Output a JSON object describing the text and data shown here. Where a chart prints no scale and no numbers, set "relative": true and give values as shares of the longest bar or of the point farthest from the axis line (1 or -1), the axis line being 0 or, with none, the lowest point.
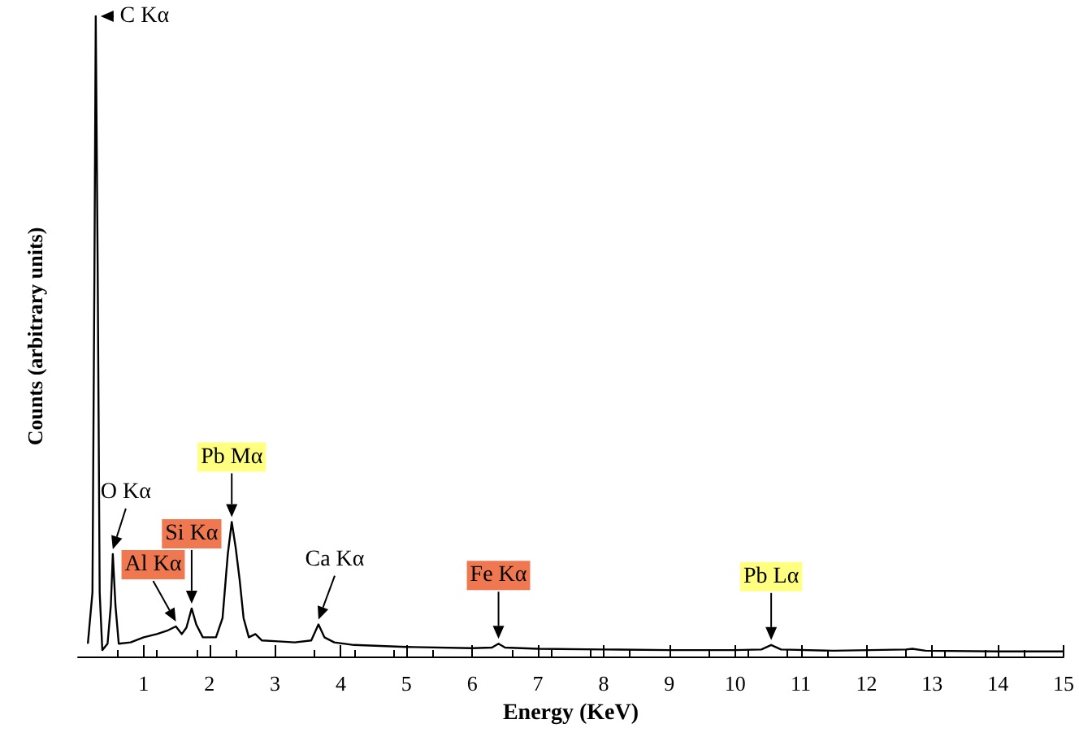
{
  "chart_data": {
    "type": "line",
    "relative": true,
    "xlabel": "Energy (KeV)",
    "ylabel": "Counts (arbitrary units)",
    "color": "#000000",
    "marker": "none",
    "grid": false,
    "xlim": [
      0,
      15
    ],
    "xticks": [
      1,
      2,
      3,
      4,
      5,
      6,
      7,
      8,
      9,
      10,
      11,
      12,
      13,
      14,
      15
    ],
    "x": [
      0.15,
      0.22,
      0.25,
      0.27,
      0.3,
      0.33,
      0.37,
      0.45,
      0.5,
      0.53,
      0.57,
      0.62,
      0.8,
      1.0,
      1.2,
      1.35,
      1.49,
      1.58,
      1.65,
      1.73,
      1.8,
      1.9,
      2.1,
      2.2,
      2.28,
      2.34,
      2.4,
      2.46,
      2.52,
      2.6,
      2.7,
      2.8,
      3.0,
      3.3,
      3.55,
      3.66,
      3.75,
      3.9,
      4.2,
      5,
      6,
      6.3,
      6.4,
      6.5,
      7,
      8,
      9,
      10,
      10.4,
      10.55,
      10.7,
      11.5,
      12.6,
      12.7,
      12.9,
      14,
      15
    ],
    "values": [
      0.02,
      0.1,
      0.6,
      1.0,
      0.6,
      0.1,
      0.01,
      0.02,
      0.08,
      0.16,
      0.08,
      0.02,
      0.022,
      0.03,
      0.035,
      0.04,
      0.047,
      0.035,
      0.045,
      0.075,
      0.05,
      0.03,
      0.03,
      0.06,
      0.16,
      0.21,
      0.17,
      0.12,
      0.06,
      0.03,
      0.035,
      0.025,
      0.024,
      0.022,
      0.025,
      0.05,
      0.03,
      0.022,
      0.018,
      0.015,
      0.013,
      0.014,
      0.02,
      0.014,
      0.012,
      0.011,
      0.01,
      0.01,
      0.011,
      0.018,
      0.011,
      0.009,
      0.011,
      0.012,
      0.009,
      0.008,
      0.008
    ],
    "annotations": [
      {
        "text": "C Kα",
        "x": 0.27,
        "y": 1.0
      },
      {
        "text": "O Kα",
        "x": 0.53,
        "y": 0.16
      },
      {
        "text": "Al Kα",
        "x": 1.49,
        "y": 0.047
      },
      {
        "text": "Si Kα",
        "x": 1.73,
        "y": 0.075
      },
      {
        "text": "Pb Mα",
        "x": 2.34,
        "y": 0.21
      },
      {
        "text": "Ca Kα",
        "x": 3.66,
        "y": 0.05
      },
      {
        "text": "Fe Kα",
        "x": 6.4,
        "y": 0.02
      },
      {
        "text": "Pb Lα",
        "x": 10.55,
        "y": 0.018
      }
    ]
  }
}
